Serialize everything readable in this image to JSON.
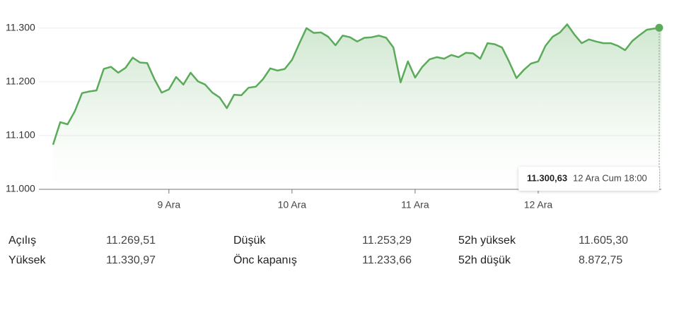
{
  "chart_data": {
    "type": "line",
    "categories": [
      null,
      null,
      null,
      null,
      null,
      null,
      null,
      null,
      null,
      null,
      null,
      null,
      null,
      null,
      null,
      null,
      "9 Ara",
      null,
      null,
      null,
      null,
      null,
      null,
      null,
      null,
      null,
      null,
      null,
      null,
      null,
      null,
      null,
      null,
      "10 Ara",
      null,
      null,
      null,
      null,
      null,
      null,
      null,
      null,
      null,
      null,
      null,
      null,
      null,
      null,
      null,
      null,
      "11 Ara",
      null,
      null,
      null,
      null,
      null,
      null,
      null,
      null,
      null,
      null,
      null,
      null,
      null,
      null,
      null,
      null,
      "12 Ara",
      null,
      null,
      null,
      null,
      null,
      null,
      null,
      null,
      null,
      null,
      null,
      null,
      null,
      null,
      null,
      null,
      null
    ],
    "series": [
      {
        "color": "#5aab5a",
        "values": [
          11083,
          11125,
          11121,
          11145,
          11179,
          11182,
          11184,
          11224,
          11228,
          11217,
          11226,
          11245,
          11236,
          11235,
          11205,
          11180,
          11186,
          11209,
          11195,
          11217,
          11201,
          11195,
          11180,
          11171,
          11151,
          11176,
          11175,
          11189,
          11191,
          11205,
          11225,
          11221,
          11224,
          11241,
          11271,
          11300,
          11291,
          11292,
          11284,
          11268,
          11286,
          11283,
          11275,
          11282,
          11283,
          11286,
          11282,
          11264,
          11199,
          11238,
          11208,
          11228,
          11242,
          11246,
          11243,
          11250,
          11246,
          11254,
          11253,
          11243,
          11272,
          11270,
          11264,
          11237,
          11207,
          11222,
          11234,
          11238,
          11267,
          11284,
          11292,
          11307,
          11288,
          11272,
          11279,
          11275,
          11272,
          11272,
          11267,
          11259,
          11276,
          11287,
          11297,
          11299,
          11300.63
        ]
      }
    ],
    "ylim": [
      11000,
      11326
    ],
    "yticks": [
      {
        "value": 11000,
        "label": "11.000"
      },
      {
        "value": 11100,
        "label": "11.100"
      },
      {
        "value": 11200,
        "label": "11.200"
      },
      {
        "value": 11300,
        "label": "11.300"
      }
    ],
    "grid": true,
    "tooltip": {
      "value": "11.300,63",
      "time": "12 Ara Cum 18:00"
    }
  },
  "stats": [
    [
      [
        "Açılış",
        "11.269,51"
      ],
      [
        "Düşük",
        "11.253,29"
      ],
      [
        "52h yüksek",
        "11.605,30"
      ]
    ],
    [
      [
        "Yüksek",
        "11.330,97"
      ],
      [
        "Önc kapanış",
        "11.233,66"
      ],
      [
        "52h düşük",
        "8.872,75"
      ]
    ]
  ]
}
